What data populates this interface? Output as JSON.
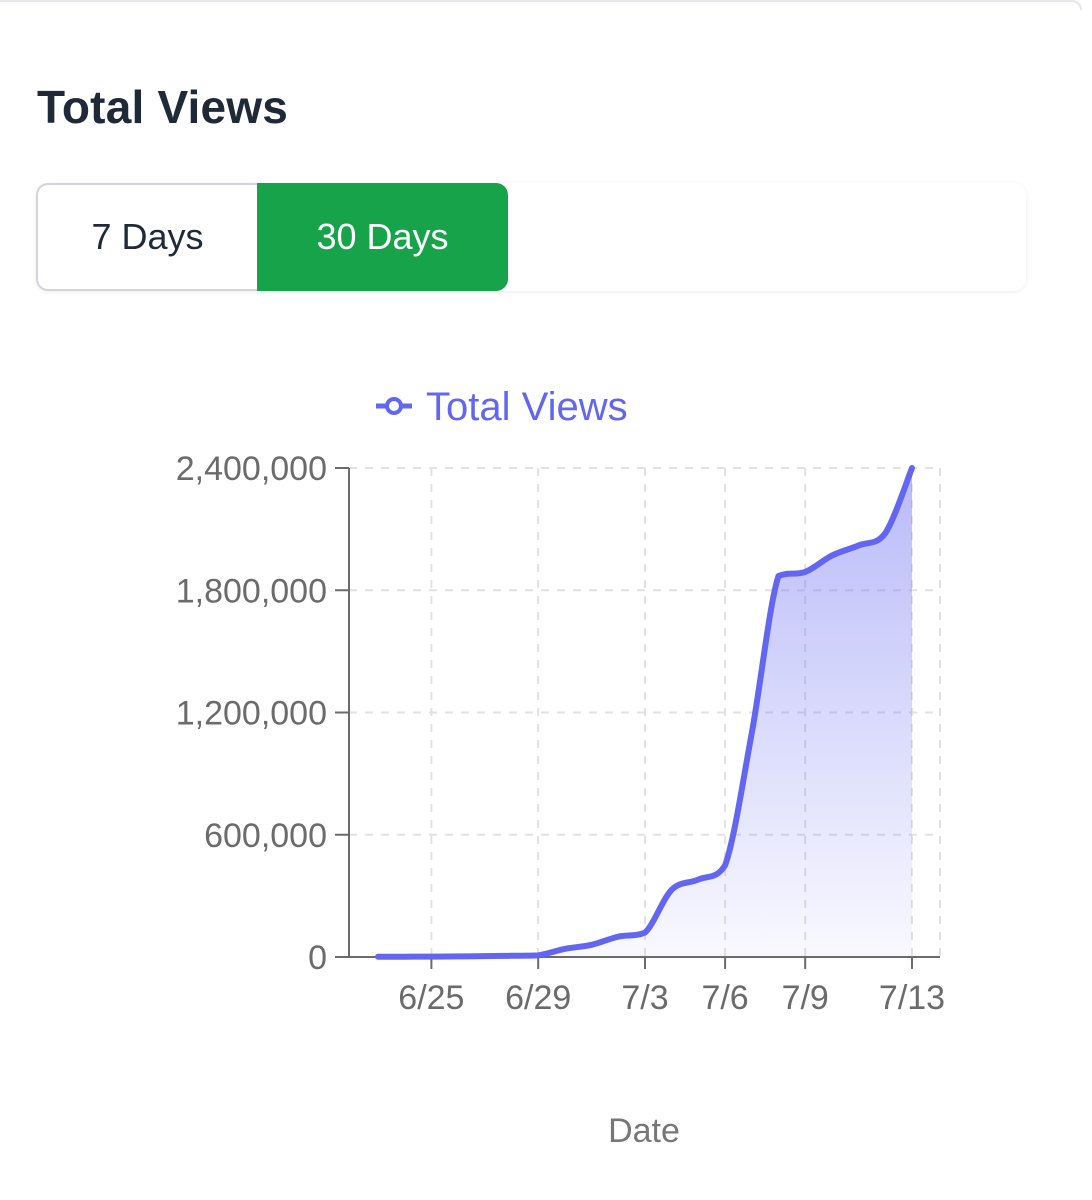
{
  "card": {
    "title": "Total Views"
  },
  "range_toggle": {
    "options": [
      "7 Days",
      "30 Days"
    ],
    "selected": "30 Days"
  },
  "colors": {
    "series": "#6366f1",
    "active_toggle": "#16a34a",
    "title": "#1f2937",
    "axis_text": "#6b6b6b"
  },
  "chart_data": {
    "type": "area",
    "title": "",
    "legend": {
      "label": "Total Views",
      "position": "top-center",
      "icon": "line-circle-icon"
    },
    "xlabel": "Date",
    "ylabel": "",
    "x_tick_labels": [
      "6/25",
      "6/29",
      "7/3",
      "7/6",
      "7/9",
      "7/13"
    ],
    "y_tick_labels": [
      "0",
      "600,000",
      "1,200,000",
      "1,800,000",
      "2,400,000"
    ],
    "ylim": [
      0,
      2400000
    ],
    "grid": true,
    "series": [
      {
        "name": "Total Views",
        "x": [
          "6/23",
          "6/24",
          "6/25",
          "6/26",
          "6/27",
          "6/28",
          "6/29",
          "6/30",
          "7/1",
          "7/2",
          "7/3",
          "7/4",
          "7/5",
          "7/6",
          "7/7",
          "7/8",
          "7/9",
          "7/10",
          "7/11",
          "7/12",
          "7/13"
        ],
        "values": [
          1000,
          1500,
          2000,
          3000,
          4000,
          6000,
          8000,
          40000,
          60000,
          100000,
          120000,
          330000,
          380000,
          450000,
          1100000,
          1870000,
          1890000,
          1970000,
          2020000,
          2080000,
          2400000
        ]
      }
    ]
  }
}
